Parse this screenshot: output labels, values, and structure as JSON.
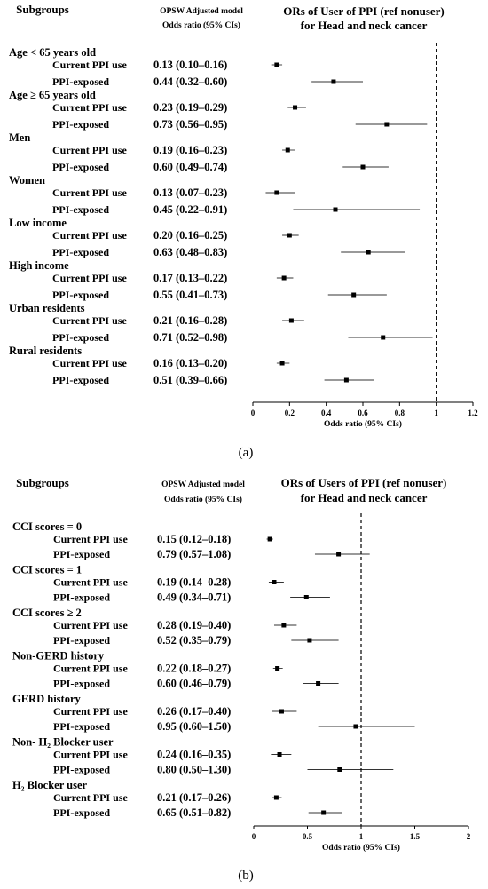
{
  "chart_data": [
    {
      "type": "forest",
      "panel_label": "(a)",
      "header": {
        "subgroups": "Subgroups",
        "model_line1": "OPSW Adjusted model",
        "model_line2": "Odds ratio (95% CIs)",
        "title_line1": "ORs of User of PPI  (ref nonuser)",
        "title_line2": "for Head and neck cancer"
      },
      "xlabel": "Odds ratio (95% CIs)",
      "xlim": [
        0,
        1.2
      ],
      "xticks": [
        "0",
        "0.2",
        "0.4",
        "0.6",
        "0.8",
        "1",
        "1.2"
      ],
      "reference_line": 1,
      "groups": [
        {
          "label": "Age < 65 years old",
          "rows": [
            {
              "label": "Current PPI use",
              "text": "0.13 (0.10–0.16)",
              "or": 0.13,
              "lo": 0.1,
              "hi": 0.16
            },
            {
              "label": "PPI-exposed",
              "text": "0.44 (0.32–0.60)",
              "or": 0.44,
              "lo": 0.32,
              "hi": 0.6
            }
          ]
        },
        {
          "label": "Age ≥ 65 years old",
          "rows": [
            {
              "label": "Current PPI use",
              "text": "0.23 (0.19–0.29)",
              "or": 0.23,
              "lo": 0.19,
              "hi": 0.29
            },
            {
              "label": "PPI-exposed",
              "text": "0.73 (0.56–0.95)",
              "or": 0.73,
              "lo": 0.56,
              "hi": 0.95
            }
          ]
        },
        {
          "label": "Men",
          "rows": [
            {
              "label": "Current PPI use",
              "text": "0.19 (0.16–0.23)",
              "or": 0.19,
              "lo": 0.16,
              "hi": 0.23
            },
            {
              "label": "PPI-exposed",
              "text": "0.60 (0.49–0.74)",
              "or": 0.6,
              "lo": 0.49,
              "hi": 0.74
            }
          ]
        },
        {
          "label": "Women",
          "rows": [
            {
              "label": "Current PPI use",
              "text": "0.13 (0.07–0.23)",
              "or": 0.13,
              "lo": 0.07,
              "hi": 0.23
            },
            {
              "label": "PPI-exposed",
              "text": "0.45 (0.22–0.91)",
              "or": 0.45,
              "lo": 0.22,
              "hi": 0.91
            }
          ]
        },
        {
          "label": "Low income",
          "rows": [
            {
              "label": "Current PPI use",
              "text": "0.20 (0.16–0.25)",
              "or": 0.2,
              "lo": 0.16,
              "hi": 0.25
            },
            {
              "label": "PPI-exposed",
              "text": "0.63 (0.48–0.83)",
              "or": 0.63,
              "lo": 0.48,
              "hi": 0.83
            }
          ]
        },
        {
          "label": "High income",
          "rows": [
            {
              "label": "Current PPI use",
              "text": "0.17 (0.13–0.22)",
              "or": 0.17,
              "lo": 0.13,
              "hi": 0.22
            },
            {
              "label": "PPI-exposed",
              "text": "0.55 (0.41–0.73)",
              "or": 0.55,
              "lo": 0.41,
              "hi": 0.73
            }
          ]
        },
        {
          "label": "Urban residents",
          "rows": [
            {
              "label": "Current PPI use",
              "text": "0.21 (0.16–0.28)",
              "or": 0.21,
              "lo": 0.16,
              "hi": 0.28
            },
            {
              "label": "PPI-exposed",
              "text": "0.71 (0.52–0.98)",
              "or": 0.71,
              "lo": 0.52,
              "hi": 0.98
            }
          ]
        },
        {
          "label": "Rural residents",
          "rows": [
            {
              "label": "Current PPI use",
              "text": "0.16 (0.13–0.20)",
              "or": 0.16,
              "lo": 0.13,
              "hi": 0.2
            },
            {
              "label": "PPI-exposed",
              "text": "0.51 (0.39–0.66)",
              "or": 0.51,
              "lo": 0.39,
              "hi": 0.66
            }
          ]
        }
      ]
    },
    {
      "type": "forest",
      "panel_label": "(b)",
      "header": {
        "subgroups": "Subgroups",
        "model_line1": "OPSW Adjusted model",
        "model_line2": "Odds ratio (95% CIs)",
        "title_line1": "ORs of Users of PPI  (ref nonuser)",
        "title_line2": "for Head and neck cancer"
      },
      "xlabel": "Odds ratio (95% CIs)",
      "xlim": [
        0,
        2
      ],
      "xticks": [
        "0",
        "0.5",
        "1",
        "1.5",
        "2"
      ],
      "reference_line": 1,
      "groups": [
        {
          "label": "CCI scores = 0",
          "rows": [
            {
              "label": "Current PPI use",
              "text": "0.15 (0.12–0.18)",
              "or": 0.15,
              "lo": 0.12,
              "hi": 0.18
            },
            {
              "label": "PPI-exposed",
              "text": "0.79 (0.57–1.08)",
              "or": 0.79,
              "lo": 0.57,
              "hi": 1.08
            }
          ]
        },
        {
          "label": "CCI scores = 1",
          "rows": [
            {
              "label": "Current PPI use",
              "text": "0.19 (0.14–0.28)",
              "or": 0.19,
              "lo": 0.14,
              "hi": 0.28
            },
            {
              "label": "PPI-exposed",
              "text": "0.49 (0.34–0.71)",
              "or": 0.49,
              "lo": 0.34,
              "hi": 0.71
            }
          ]
        },
        {
          "label": "CCI scores ≥ 2",
          "rows": [
            {
              "label": "Current PPI use",
              "text": "0.28 (0.19–0.40)",
              "or": 0.28,
              "lo": 0.19,
              "hi": 0.4
            },
            {
              "label": "PPI-exposed",
              "text": "0.52 (0.35–0.79)",
              "or": 0.52,
              "lo": 0.35,
              "hi": 0.79
            }
          ]
        },
        {
          "label": "Non-GERD history",
          "rows": [
            {
              "label": "Current PPI use",
              "text": "0.22 (0.18–0.27)",
              "or": 0.22,
              "lo": 0.18,
              "hi": 0.27
            },
            {
              "label": "PPI-exposed",
              "text": "0.60 (0.46–0.79)",
              "or": 0.6,
              "lo": 0.46,
              "hi": 0.79
            }
          ]
        },
        {
          "label": "GERD history",
          "rows": [
            {
              "label": "Current PPI use",
              "text": "0.26 (0.17–0.40)",
              "or": 0.26,
              "lo": 0.17,
              "hi": 0.4
            },
            {
              "label": "PPI-exposed",
              "text": "0.95 (0.60–1.50)",
              "or": 0.95,
              "lo": 0.6,
              "hi": 1.5
            }
          ]
        },
        {
          "label": "Non- H₂ Blocker user",
          "rows": [
            {
              "label": "Current PPI use",
              "text": "0.24 (0.16–0.35)",
              "or": 0.24,
              "lo": 0.16,
              "hi": 0.35
            },
            {
              "label": "PPI-exposed",
              "text": "0.80 (0.50–1.30)",
              "or": 0.8,
              "lo": 0.5,
              "hi": 1.3
            }
          ]
        },
        {
          "label": "H₂ Blocker user",
          "rows": [
            {
              "label": "Current PPI use",
              "text": "0.21 (0.17–0.26)",
              "or": 0.21,
              "lo": 0.17,
              "hi": 0.26
            },
            {
              "label": "PPI-exposed",
              "text": "0.65 (0.51–0.82)",
              "or": 0.65,
              "lo": 0.51,
              "hi": 0.82
            }
          ]
        }
      ]
    }
  ]
}
